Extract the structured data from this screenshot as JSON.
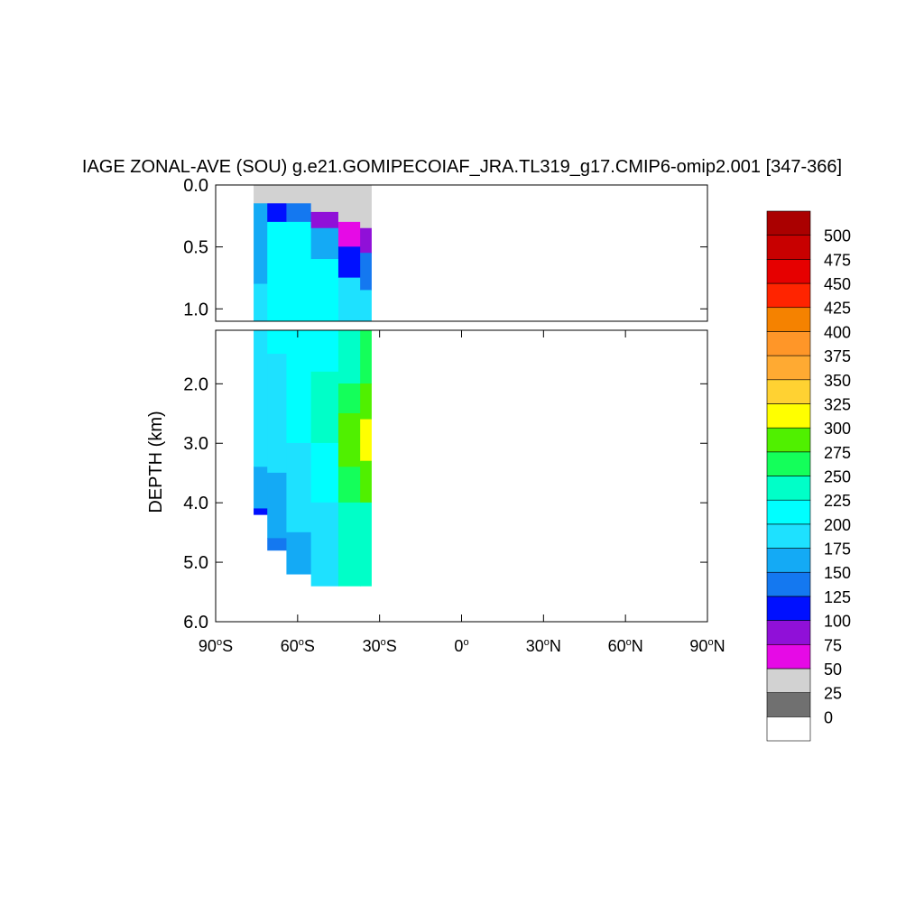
{
  "chart_data": {
    "type": "heatmap",
    "title": "IAGE ZONAL-AVE (SOU) g.e21.GOMIPECOIAF_JRA.TL319_g17.CMIP6-omip2.001 [347-366]",
    "xlabel": "",
    "ylabel": "DEPTH (km)",
    "xlim": [
      -90,
      90
    ],
    "ylim": [
      0,
      6
    ],
    "x_ticks": [
      {
        "value": -90,
        "deg": "90",
        "hemi": "S"
      },
      {
        "value": -60,
        "deg": "60",
        "hemi": "S"
      },
      {
        "value": -30,
        "deg": "30",
        "hemi": "S"
      },
      {
        "value": 0,
        "deg": "0",
        "hemi": ""
      },
      {
        "value": 30,
        "deg": "30",
        "hemi": "N"
      },
      {
        "value": 60,
        "deg": "60",
        "hemi": "N"
      },
      {
        "value": 90,
        "deg": "90",
        "hemi": "N"
      }
    ],
    "upper_panel": {
      "ylim": [
        0,
        1.1
      ],
      "y_ticks": [
        "0.0",
        "0.5",
        "1.0"
      ]
    },
    "lower_panel": {
      "ylim": [
        1.1,
        6.0
      ],
      "y_ticks": [
        "2.0",
        "3.0",
        "4.0",
        "5.0",
        "6.0"
      ]
    },
    "colorbar": {
      "levels": [
        "0",
        "25",
        "50",
        "75",
        "100",
        "125",
        "150",
        "175",
        "200",
        "225",
        "250",
        "275",
        "300",
        "325",
        "350",
        "375",
        "400",
        "425",
        "450",
        "475",
        "500"
      ],
      "colors": [
        "#ffffff",
        "#707070",
        "#d2d2d2",
        "#e60ae6",
        "#9010d8",
        "#0010ff",
        "#1478f0",
        "#14aaf5",
        "#1ee1ff",
        "#00ffff",
        "#00ffc8",
        "#14ff5a",
        "#50f000",
        "#ffff00",
        "#ffd232",
        "#ffaa32",
        "#ff9628",
        "#f58200",
        "#ff2400",
        "#e60000",
        "#c80000",
        "#aa0000"
      ]
    },
    "field": [
      {
        "lat": -74,
        "depths": [
          [
            0.0,
            0.15,
            25
          ],
          [
            0.15,
            0.8,
            150
          ],
          [
            0.8,
            3.4,
            175
          ],
          [
            3.4,
            4.1,
            150
          ],
          [
            4.1,
            4.2,
            100
          ]
        ]
      },
      {
        "lat": -68,
        "depths": [
          [
            0.0,
            0.15,
            25
          ],
          [
            0.15,
            0.3,
            100
          ],
          [
            0.3,
            1.5,
            200
          ],
          [
            1.5,
            3.5,
            175
          ],
          [
            3.5,
            4.6,
            150
          ],
          [
            4.6,
            4.8,
            125
          ]
        ]
      },
      {
        "lat": -60,
        "depths": [
          [
            0.0,
            0.15,
            25
          ],
          [
            0.15,
            0.3,
            125
          ],
          [
            0.3,
            1.5,
            200
          ],
          [
            1.5,
            3.0,
            200
          ],
          [
            3.0,
            4.5,
            175
          ],
          [
            4.5,
            5.2,
            150
          ]
        ]
      },
      {
        "lat": -50,
        "depths": [
          [
            0.0,
            0.22,
            25
          ],
          [
            0.22,
            0.35,
            75
          ],
          [
            0.35,
            0.6,
            150
          ],
          [
            0.6,
            1.8,
            200
          ],
          [
            1.8,
            3.0,
            225
          ],
          [
            3.0,
            4.0,
            200
          ],
          [
            4.0,
            5.4,
            175
          ]
        ]
      },
      {
        "lat": -40,
        "depths": [
          [
            0.0,
            0.3,
            25
          ],
          [
            0.3,
            0.5,
            50
          ],
          [
            0.5,
            0.75,
            100
          ],
          [
            0.75,
            1.1,
            175
          ],
          [
            1.1,
            2.0,
            225
          ],
          [
            2.0,
            2.5,
            250
          ],
          [
            2.5,
            3.4,
            275
          ],
          [
            3.4,
            4.0,
            250
          ],
          [
            4.0,
            5.4,
            225
          ]
        ]
      },
      {
        "lat": -34,
        "depths": [
          [
            0.0,
            0.35,
            25
          ],
          [
            0.35,
            0.55,
            75
          ],
          [
            0.55,
            0.85,
            125
          ],
          [
            0.85,
            1.1,
            175
          ],
          [
            1.1,
            2.0,
            250
          ],
          [
            2.0,
            2.6,
            275
          ],
          [
            2.6,
            3.3,
            300
          ],
          [
            3.3,
            4.0,
            275
          ],
          [
            4.0,
            5.4,
            225
          ]
        ]
      }
    ]
  }
}
